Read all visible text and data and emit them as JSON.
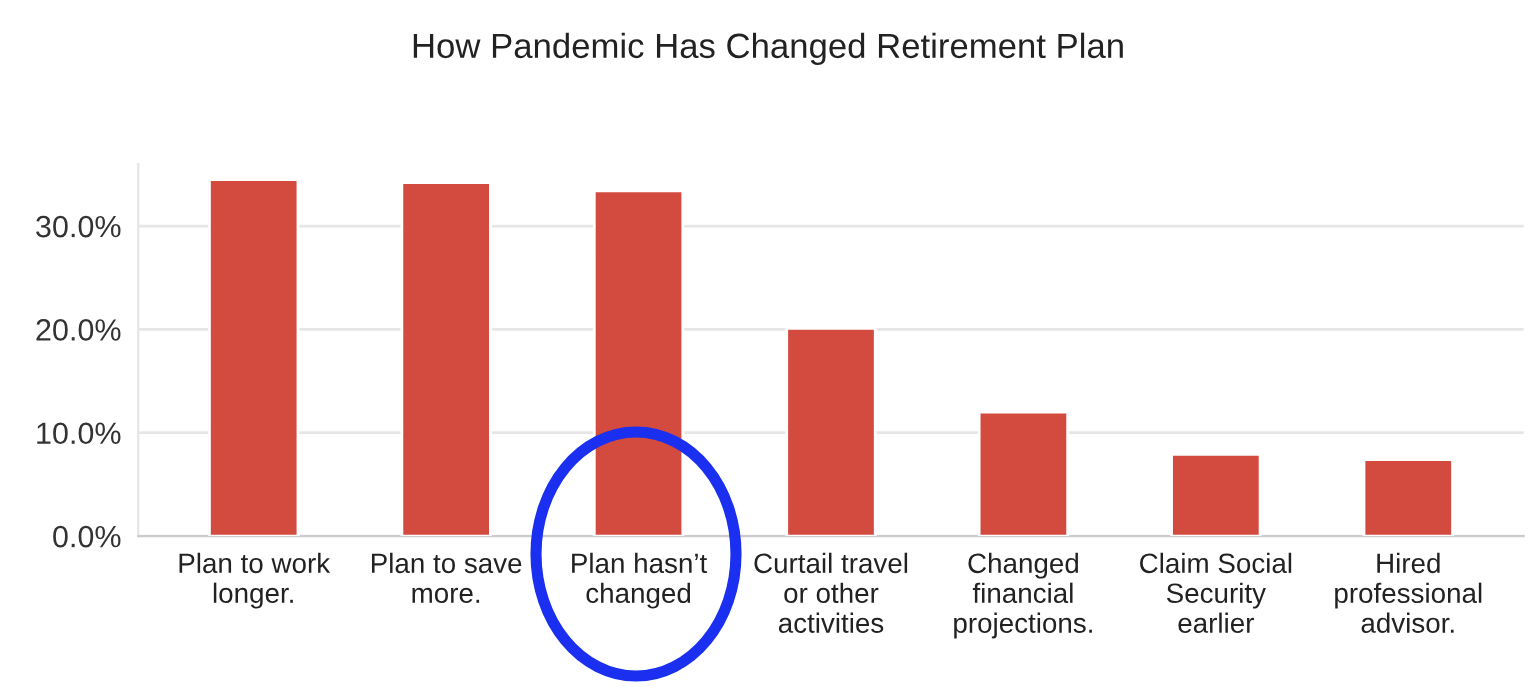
{
  "chart_data": {
    "type": "bar",
    "title": "How Pandemic Has Changed Retirement Plan",
    "categories": [
      "Plan to work\nlonger.",
      "Plan to save\nmore.",
      "Plan hasn’t\nchanged",
      "Curtail travel\nor other\nactivities",
      "Changed\nfinancial\nprojections.",
      "Claim Social\nSecurity\nearlier",
      "Hired\nprofessional\nadvisor."
    ],
    "values": [
      34.5,
      34.2,
      33.4,
      20.1,
      12.0,
      7.9,
      7.4
    ],
    "color": "#d34a3f",
    "ylim": [
      0,
      36
    ],
    "yticks": [
      {
        "value": 0,
        "label": "0.0%"
      },
      {
        "value": 10,
        "label": "10.0%"
      },
      {
        "value": 20,
        "label": "20.0%"
      },
      {
        "value": 30,
        "label": "30.0%"
      }
    ],
    "grid": "y"
  }
}
